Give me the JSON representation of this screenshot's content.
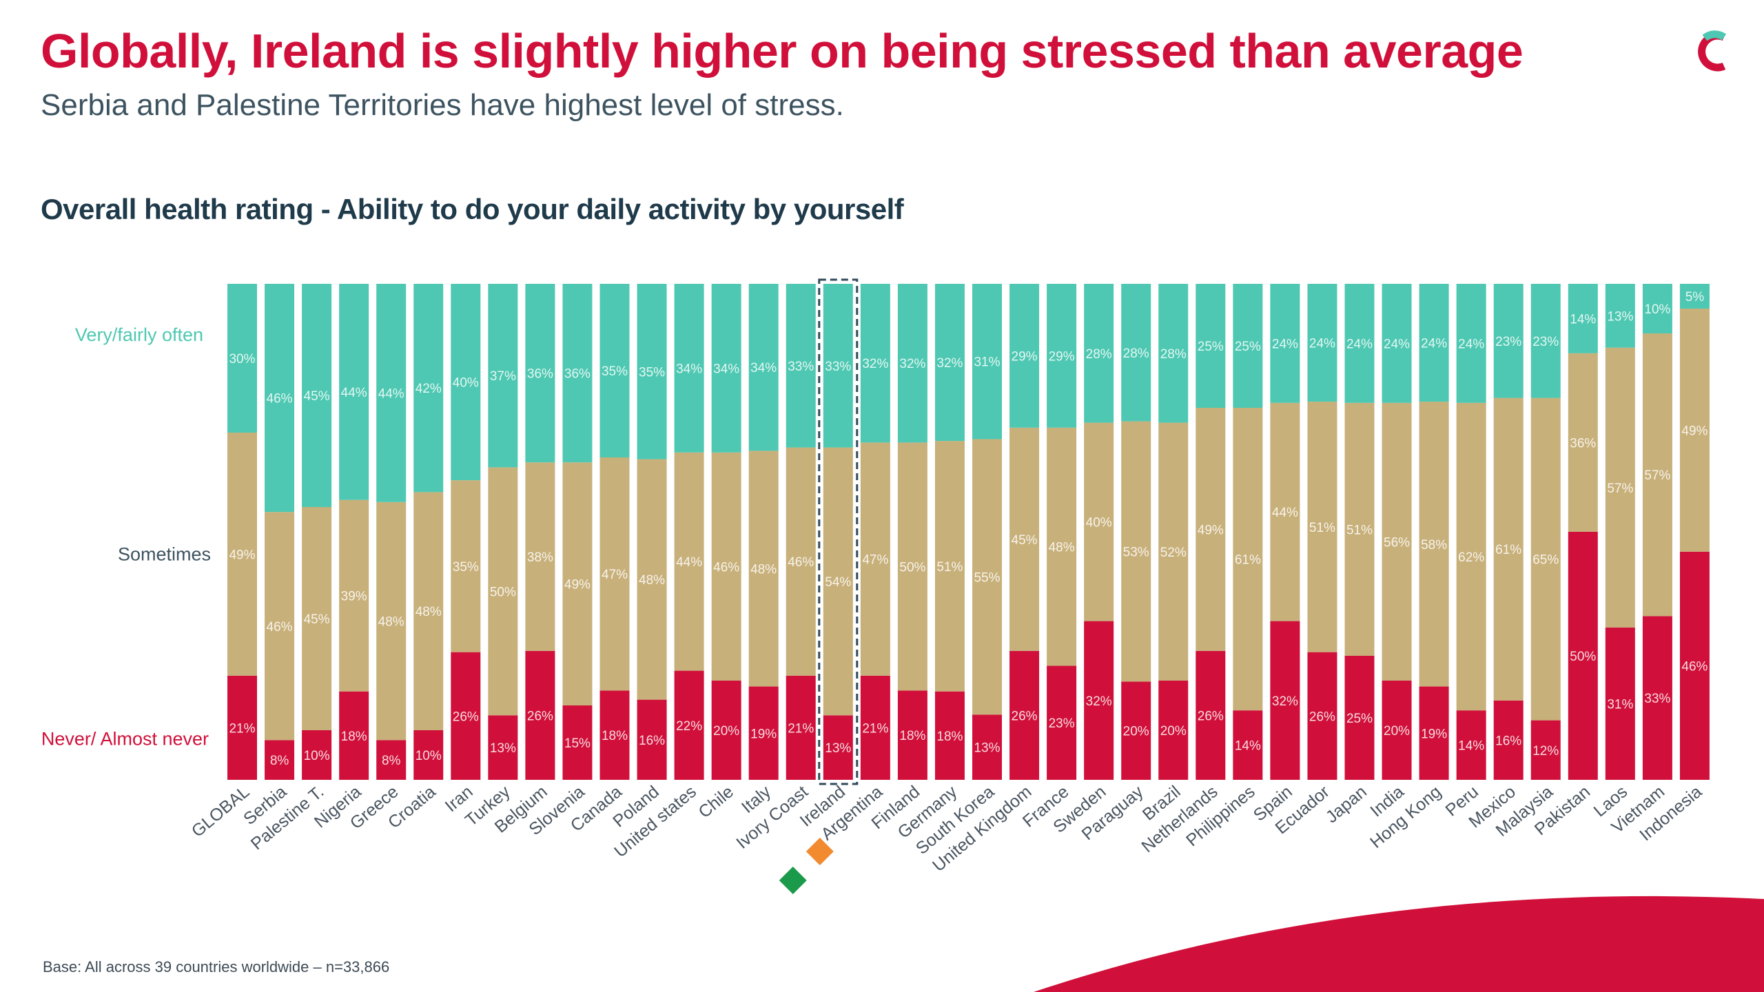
{
  "header": {
    "title": "Globally, Ireland is slightly higher on being stressed than average",
    "subtitle": "Serbia and Palestine Territories have highest level of stress."
  },
  "footnote": "Base: All across 39 countries worldwide – n=33,866",
  "colors": {
    "never": "#d0103a",
    "sometimes": "#c8b07a",
    "often": "#4ec8b2",
    "accent": "#d0103a",
    "highlight_border": "#2f4a5a"
  },
  "chart_data": {
    "type": "bar",
    "stacked": true,
    "title": "Overall health rating - Ability to do your daily activity by yourself",
    "unit": "%",
    "ylim": [
      0,
      100
    ],
    "highlight": "Ireland",
    "highlight_flag_icons": [
      "ivory-coast-flag-icon",
      "ireland-flag-icon"
    ],
    "categories": [
      "GLOBAL",
      "Serbia",
      "Palestine T.",
      "Nigeria",
      "Greece",
      "Croatia",
      "Iran",
      "Turkey",
      "Belgium",
      "Slovenia",
      "Canada",
      "Poland",
      "United states",
      "Chile",
      "Italy",
      "Ivory Coast",
      "Ireland",
      "Argentina",
      "Finland",
      "Germany",
      "South Korea",
      "United Kingdom",
      "France",
      "Sweden",
      "Paraguay",
      "Brazil",
      "Netherlands",
      "Philippines",
      "Spain",
      "Ecuador",
      "Japan",
      "India",
      "Hong Kong",
      "Peru",
      "Mexico",
      "Malaysia",
      "Pakistan",
      "Laos",
      "Vietnam",
      "Indonesia"
    ],
    "series": [
      {
        "name": "Never/ Almost never",
        "color": "#d0103a",
        "values": [
          21,
          8,
          10,
          18,
          8,
          10,
          26,
          13,
          26,
          15,
          18,
          16,
          22,
          20,
          19,
          21,
          13,
          21,
          18,
          18,
          13,
          26,
          23,
          32,
          20,
          20,
          26,
          14,
          32,
          26,
          25,
          20,
          19,
          14,
          16,
          12,
          50,
          31,
          33,
          46
        ]
      },
      {
        "name": "Sometimes",
        "color": "#c8b07a",
        "values": [
          49,
          46,
          45,
          39,
          48,
          48,
          35,
          50,
          38,
          49,
          47,
          48,
          44,
          46,
          48,
          46,
          54,
          47,
          50,
          51,
          55,
          45,
          48,
          40,
          53,
          52,
          49,
          61,
          44,
          51,
          51,
          56,
          58,
          62,
          61,
          65,
          36,
          57,
          57,
          49
        ]
      },
      {
        "name": "Very/fairly often",
        "color": "#4ec8b2",
        "values": [
          30,
          46,
          45,
          44,
          44,
          42,
          40,
          37,
          36,
          36,
          35,
          35,
          34,
          34,
          34,
          33,
          33,
          32,
          32,
          32,
          31,
          29,
          29,
          28,
          28,
          28,
          25,
          25,
          24,
          24,
          24,
          24,
          24,
          24,
          23,
          23,
          14,
          13,
          10,
          5
        ]
      }
    ]
  }
}
